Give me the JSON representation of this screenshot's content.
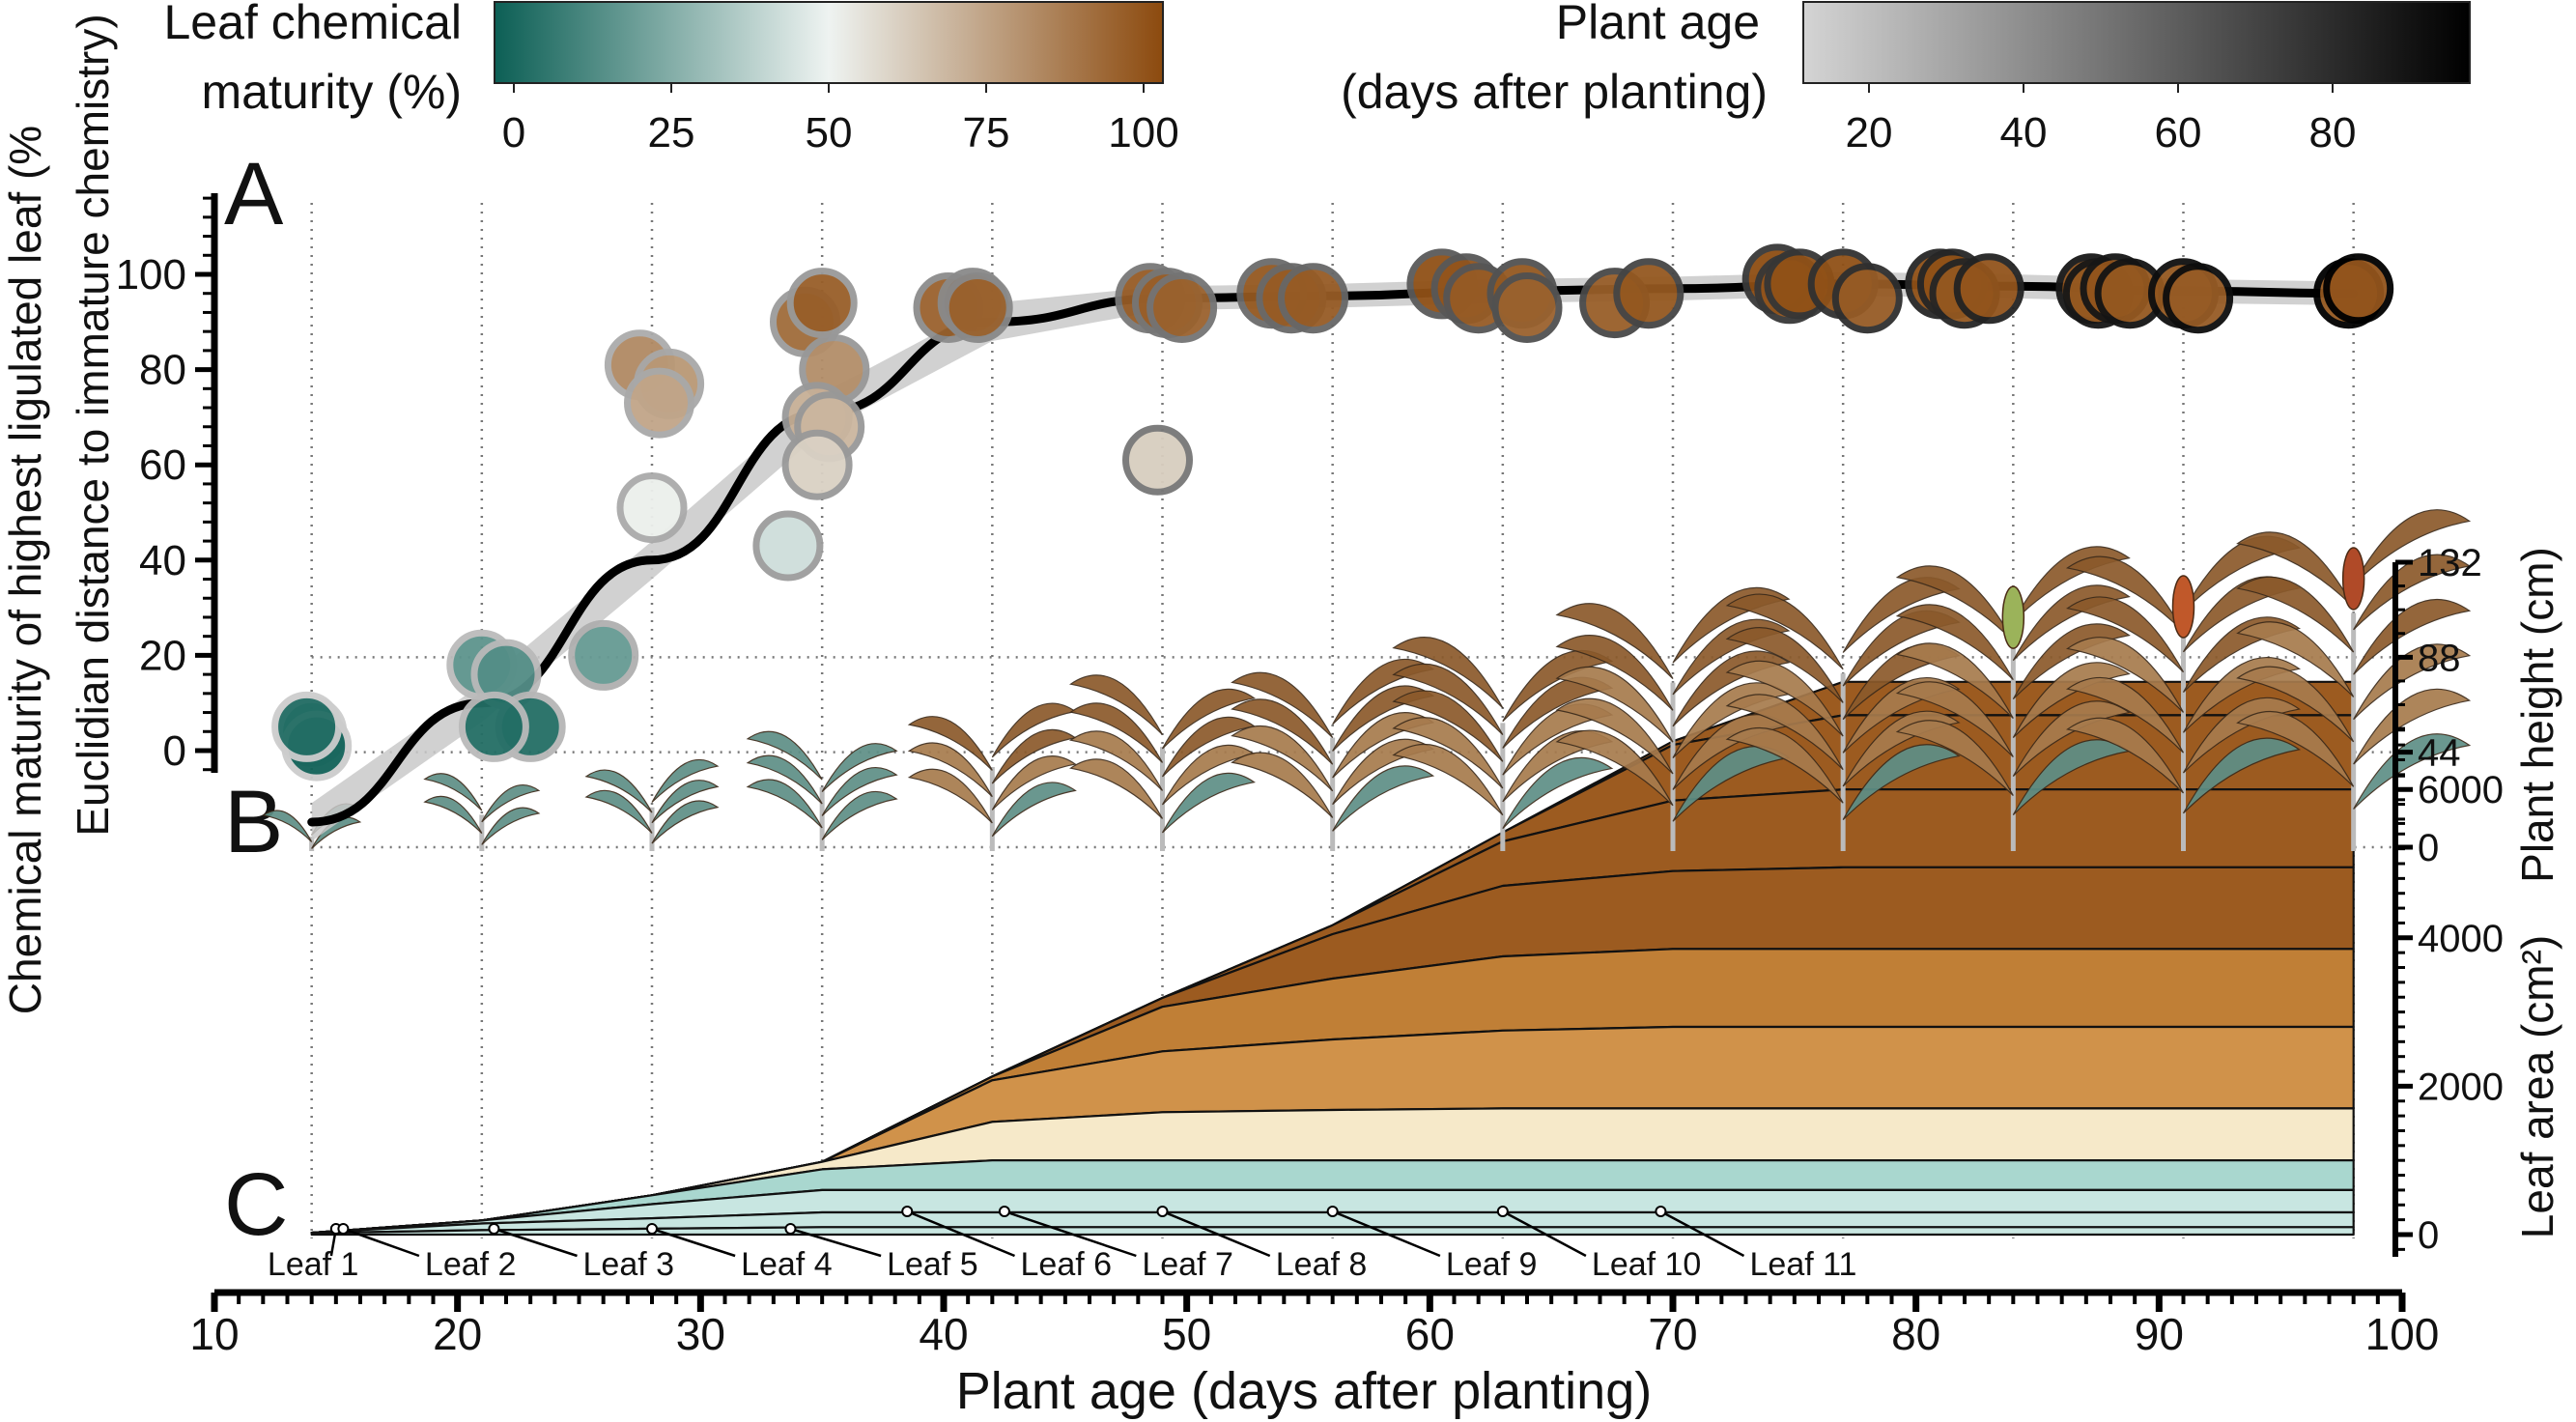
{
  "panels": {
    "a_label": "A",
    "b_label": "B",
    "c_label": "C"
  },
  "legends": {
    "maturity": {
      "title_line1": "Leaf chemical",
      "title_line2": "maturity (%)",
      "ticks": [
        "0",
        "25",
        "50",
        "75",
        "100"
      ],
      "colors": [
        "#0c5f55",
        "#eef3f1",
        "#8c4a0e"
      ]
    },
    "age": {
      "title_line1": "Plant age",
      "title_line2": "(days after planting)",
      "ticks": [
        "20",
        "40",
        "60",
        "80"
      ],
      "colors": [
        "#d4d4d4",
        "#000000"
      ]
    }
  },
  "axes": {
    "x_title": "Plant age (days after planting)",
    "y_left_line1": "Chemical maturity of highest ligulated leaf (%",
    "y_left_line2": "Euclidian distance to immature chemistry)",
    "y_height_title": "Plant height (cm)",
    "y_area_title": "Leaf area (cm²)"
  },
  "chart_data": [
    {
      "type": "scatter",
      "panel": "A",
      "xlabel": "Plant age (days after planting)",
      "ylabel": "Chemical maturity of highest ligulated leaf (% Euclidian distance to immature chemistry)",
      "xlim": [
        10,
        100
      ],
      "ylim": [
        0,
        100
      ],
      "x_ticks": [
        "10",
        "20",
        "30",
        "40",
        "50",
        "60",
        "70",
        "80",
        "90",
        "100"
      ],
      "y_ticks": [
        "0",
        "20",
        "40",
        "60",
        "80",
        "100"
      ],
      "sampling_days": [
        14,
        21,
        28,
        35,
        42,
        49,
        56,
        63,
        70,
        77,
        84,
        91,
        98
      ],
      "points": [
        {
          "x": 14,
          "y": 4
        },
        {
          "x": 14.2,
          "y": 1
        },
        {
          "x": 13.8,
          "y": 5
        },
        {
          "x": 21,
          "y": 18
        },
        {
          "x": 22,
          "y": 16
        },
        {
          "x": 23,
          "y": 5
        },
        {
          "x": 21.5,
          "y": 5
        },
        {
          "x": 26,
          "y": 20
        },
        {
          "x": 27.5,
          "y": 81
        },
        {
          "x": 28.7,
          "y": 77
        },
        {
          "x": 28.3,
          "y": 73
        },
        {
          "x": 28,
          "y": 51
        },
        {
          "x": 33.6,
          "y": 43
        },
        {
          "x": 34.3,
          "y": 90
        },
        {
          "x": 35,
          "y": 94
        },
        {
          "x": 35.5,
          "y": 80
        },
        {
          "x": 34.8,
          "y": 70
        },
        {
          "x": 35.3,
          "y": 68
        },
        {
          "x": 34.8,
          "y": 60
        },
        {
          "x": 40.2,
          "y": 93
        },
        {
          "x": 41.2,
          "y": 94
        },
        {
          "x": 41.4,
          "y": 93
        },
        {
          "x": 48.5,
          "y": 95
        },
        {
          "x": 48.8,
          "y": 61
        },
        {
          "x": 49.2,
          "y": 94
        },
        {
          "x": 49.8,
          "y": 93
        },
        {
          "x": 53.5,
          "y": 96
        },
        {
          "x": 54.3,
          "y": 95
        },
        {
          "x": 55.2,
          "y": 95
        },
        {
          "x": 60.5,
          "y": 98
        },
        {
          "x": 61.5,
          "y": 97
        },
        {
          "x": 62,
          "y": 95
        },
        {
          "x": 63.8,
          "y": 96
        },
        {
          "x": 64,
          "y": 93
        },
        {
          "x": 67.6,
          "y": 94
        },
        {
          "x": 69,
          "y": 96
        },
        {
          "x": 74.3,
          "y": 99
        },
        {
          "x": 74.8,
          "y": 97
        },
        {
          "x": 75.2,
          "y": 98
        },
        {
          "x": 77,
          "y": 98
        },
        {
          "x": 78,
          "y": 95
        },
        {
          "x": 81,
          "y": 98
        },
        {
          "x": 81.5,
          "y": 98
        },
        {
          "x": 82,
          "y": 96
        },
        {
          "x": 83,
          "y": 97
        },
        {
          "x": 87.2,
          "y": 97
        },
        {
          "x": 87.5,
          "y": 96
        },
        {
          "x": 88.2,
          "y": 97
        },
        {
          "x": 88.8,
          "y": 96
        },
        {
          "x": 91,
          "y": 96
        },
        {
          "x": 91.6,
          "y": 95
        },
        {
          "x": 97.8,
          "y": 96
        },
        {
          "x": 98.2,
          "y": 97
        }
      ],
      "fit_line": [
        [
          14,
          -15
        ],
        [
          21,
          10
        ],
        [
          28,
          40
        ],
        [
          35,
          71
        ],
        [
          42,
          90
        ],
        [
          49,
          95
        ],
        [
          56,
          95.5
        ],
        [
          63,
          96.5
        ],
        [
          70,
          97
        ],
        [
          77,
          98
        ],
        [
          84,
          97.5
        ],
        [
          91,
          96.5
        ],
        [
          98,
          96
        ]
      ]
    },
    {
      "type": "area",
      "panel": "B",
      "ylabel": "Plant height (cm)",
      "y_ticks": [
        "0",
        "44",
        "88",
        "132"
      ],
      "ylim": [
        0,
        132
      ],
      "x": [
        14,
        21,
        28,
        35,
        42,
        49,
        56,
        63,
        70,
        77,
        84,
        91,
        98
      ],
      "plant_height": [
        6,
        18,
        22,
        33,
        44,
        55,
        60,
        68,
        90,
        95,
        110,
        115,
        128
      ]
    },
    {
      "type": "area",
      "panel": "C",
      "ylabel": "Leaf area (cm²)",
      "y_ticks": [
        "0",
        "2000",
        "4000",
        "6000"
      ],
      "ylim": [
        0,
        6600
      ],
      "x": [
        14,
        21,
        28,
        35,
        42,
        49,
        56,
        63,
        70,
        77,
        98
      ],
      "series": [
        {
          "name": "Leaf 1",
          "values": [
            20,
            60,
            80,
            100,
            100,
            100,
            100,
            100,
            100,
            100,
            100
          ]
        },
        {
          "name": "Leaf 2",
          "values": [
            5,
            90,
            140,
            200,
            200,
            200,
            200,
            200,
            200,
            200,
            200
          ]
        },
        {
          "name": "Leaf 3",
          "values": [
            0,
            40,
            190,
            300,
            300,
            300,
            300,
            300,
            300,
            300,
            300
          ]
        },
        {
          "name": "Leaf 4",
          "values": [
            0,
            0,
            120,
            280,
            400,
            400,
            400,
            400,
            400,
            400,
            400
          ]
        },
        {
          "name": "Leaf 5",
          "values": [
            0,
            0,
            0,
            100,
            520,
            650,
            680,
            700,
            700,
            700,
            700
          ]
        },
        {
          "name": "Leaf 6",
          "values": [
            0,
            0,
            0,
            0,
            560,
            820,
            950,
            1050,
            1100,
            1100,
            1100
          ]
        },
        {
          "name": "Leaf 7",
          "values": [
            0,
            0,
            0,
            0,
            50,
            600,
            820,
            1000,
            1050,
            1050,
            1050
          ]
        },
        {
          "name": "Leaf 8",
          "values": [
            0,
            0,
            0,
            0,
            0,
            120,
            600,
            950,
            1050,
            1100,
            1100
          ]
        },
        {
          "name": "Leaf 9",
          "values": [
            0,
            0,
            0,
            0,
            0,
            0,
            120,
            600,
            950,
            1050,
            1050
          ]
        },
        {
          "name": "Leaf 10",
          "values": [
            0,
            0,
            0,
            0,
            0,
            0,
            0,
            120,
            750,
            1000,
            1000
          ]
        },
        {
          "name": "Leaf 11",
          "values": [
            0,
            0,
            0,
            0,
            0,
            0,
            0,
            0,
            50,
            450,
            450
          ]
        }
      ],
      "leaf_labels": [
        "Leaf 1",
        "Leaf 2",
        "Leaf 3",
        "Leaf 4",
        "Leaf 5",
        "Leaf 6",
        "Leaf 7",
        "Leaf 8",
        "Leaf 9",
        "Leaf 10",
        "Leaf 11"
      ],
      "leaf_label_x": [
        12.5,
        18.5,
        25,
        31.5,
        37.5,
        43,
        48,
        53.5,
        60.5,
        66.5,
        73
      ],
      "leaf_emergence_x": [
        15,
        15.3,
        21.5,
        28,
        33.7,
        38.5,
        42.5,
        49,
        56,
        63,
        69.5
      ]
    }
  ]
}
